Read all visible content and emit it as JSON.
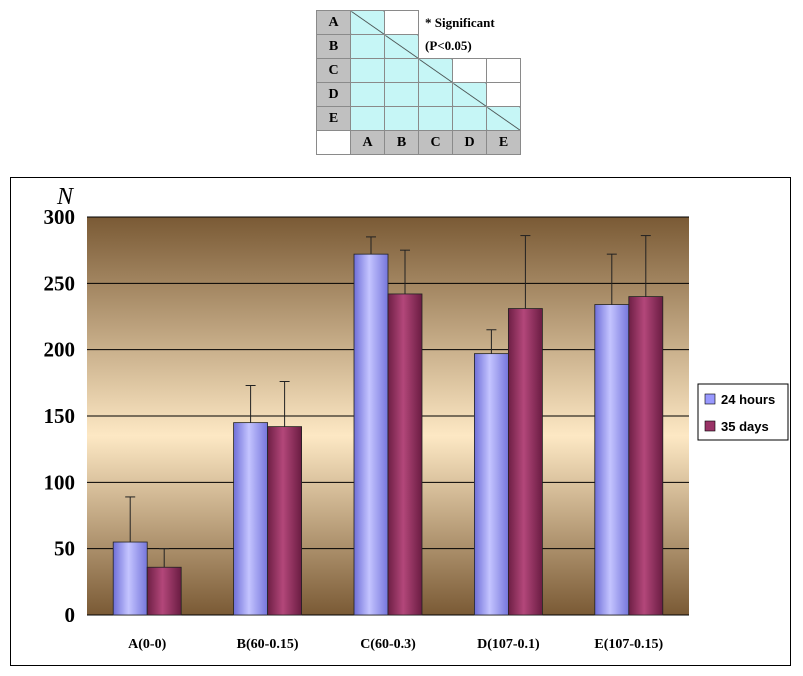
{
  "sig_table": {
    "row_labels": [
      "A",
      "B",
      "C",
      "D",
      "E"
    ],
    "col_labels": [
      "A",
      "B",
      "C",
      "D",
      "E"
    ],
    "note_line1": "* Significant",
    "note_line2": "(P<0.05)"
  },
  "chart_data": {
    "type": "bar",
    "ylabel": "N",
    "ylim": [
      0,
      300
    ],
    "yticks": [
      0,
      50,
      100,
      150,
      200,
      250,
      300
    ],
    "categories": [
      "A(0-0)",
      "B(60-0.15)",
      "C(60-0.3)",
      "D(107-0.1)",
      "E(107-0.15)"
    ],
    "series": [
      {
        "name": "24 hours",
        "color": "#9999ff",
        "values": [
          55,
          145,
          272,
          197,
          234
        ],
        "error": [
          34,
          28,
          13,
          18,
          38
        ]
      },
      {
        "name": "35 days",
        "color": "#993366",
        "values": [
          36,
          142,
          242,
          231,
          240
        ],
        "error": [
          14,
          34,
          33,
          55,
          46
        ]
      }
    ],
    "grid": true,
    "legend_position": "right"
  }
}
